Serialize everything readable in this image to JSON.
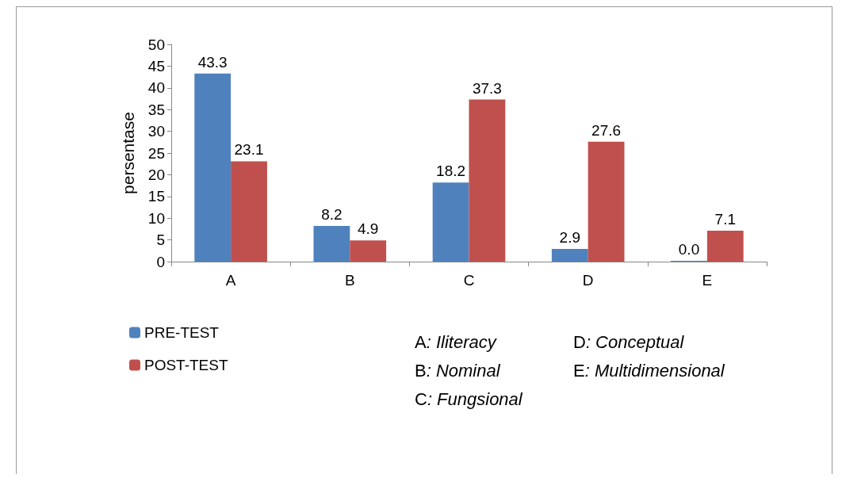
{
  "chart_data": {
    "type": "bar",
    "ylabel": "persentase",
    "categories": [
      "A",
      "B",
      "C",
      "D",
      "E"
    ],
    "series": [
      {
        "name": "PRE-TEST",
        "color": "#4f81bd",
        "values": [
          43.3,
          8.2,
          18.2,
          2.9,
          0.0
        ],
        "value_labels": [
          "43.3",
          "8.2",
          "18.2",
          "2.9",
          "0.0"
        ]
      },
      {
        "name": "POST-TEST",
        "color": "#c0504d",
        "values": [
          23.1,
          4.9,
          37.3,
          27.6,
          7.1
        ],
        "value_labels": [
          "23.1",
          "4.9",
          "37.3",
          "27.6",
          "7.1"
        ]
      }
    ],
    "ylim": [
      0,
      50
    ],
    "yticks": [
      0,
      5,
      10,
      15,
      20,
      25,
      30,
      35,
      40,
      45,
      50
    ],
    "grid": false,
    "legend": "bottom left",
    "annotations": [
      "A: Iliteracy",
      "B: Nominal",
      "C: Fungsional",
      "D: Conceptual",
      "E: Multidimensional"
    ]
  }
}
